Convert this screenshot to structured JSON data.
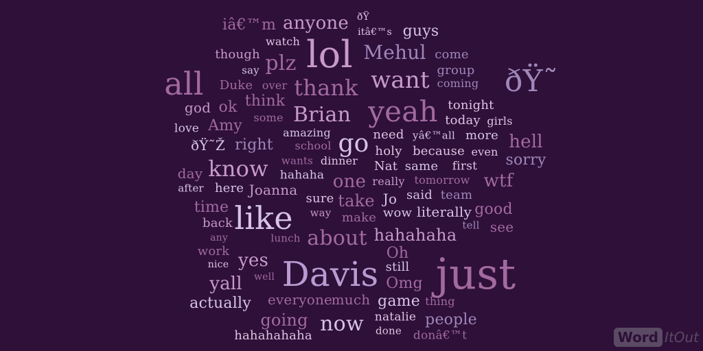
{
  "background": "#2e1039",
  "palette": {
    "a": "#c79ac9",
    "b": "#d7c3e8",
    "c": "#a26aa0",
    "d": "#9f87b9",
    "e": "#e0c2e2",
    "f": "#b99bd1"
  },
  "logo": {
    "box_text": "Word",
    "tail_text": "ItOut"
  },
  "words": [
    {
      "text": "iâ€™m",
      "c": "c",
      "s": 22
    },
    {
      "text": "anyone",
      "c": "a",
      "s": 26
    },
    {
      "text": "ðŸ",
      "c": "e",
      "s": 14
    },
    {
      "text": "itâ€™s",
      "c": "e",
      "s": 14
    },
    {
      "text": "guys",
      "c": "b",
      "s": 22
    },
    {
      "text": "watch",
      "c": "e",
      "s": 16
    },
    {
      "text": "lol",
      "c": "a",
      "s": 54
    },
    {
      "text": "Mehul",
      "c": "d",
      "s": 28
    },
    {
      "text": "come",
      "c": "d",
      "s": 18
    },
    {
      "text": "though",
      "c": "a",
      "s": 18
    },
    {
      "text": "plz",
      "c": "c",
      "s": 30
    },
    {
      "text": "say",
      "c": "b",
      "s": 15
    },
    {
      "text": "group",
      "c": "d",
      "s": 18
    },
    {
      "text": "want",
      "c": "a",
      "s": 34
    },
    {
      "text": "ðŸ˜",
      "c": "d",
      "s": 44
    },
    {
      "text": "coming",
      "c": "d",
      "s": 16
    },
    {
      "text": "all",
      "c": "c",
      "s": 46
    },
    {
      "text": "Duke",
      "c": "c",
      "s": 18
    },
    {
      "text": "over",
      "c": "c",
      "s": 16
    },
    {
      "text": "thank",
      "c": "c",
      "s": 32
    },
    {
      "text": "think",
      "c": "c",
      "s": 22
    },
    {
      "text": "god",
      "c": "a",
      "s": 20
    },
    {
      "text": "ok",
      "c": "c",
      "s": 22
    },
    {
      "text": "tonight",
      "c": "e",
      "s": 18
    },
    {
      "text": "yeah",
      "c": "c",
      "s": 42
    },
    {
      "text": "Brian",
      "c": "a",
      "s": 30
    },
    {
      "text": "today",
      "c": "e",
      "s": 18
    },
    {
      "text": "girls",
      "c": "e",
      "s": 16
    },
    {
      "text": "Amy",
      "c": "c",
      "s": 22
    },
    {
      "text": "some",
      "c": "c",
      "s": 16
    },
    {
      "text": "love",
      "c": "b",
      "s": 17
    },
    {
      "text": "amazing",
      "c": "b",
      "s": 16
    },
    {
      "text": "need",
      "c": "e",
      "s": 18
    },
    {
      "text": "yâ€™all",
      "c": "b",
      "s": 15
    },
    {
      "text": "more",
      "c": "b",
      "s": 18
    },
    {
      "text": "hell",
      "c": "c",
      "s": 26
    },
    {
      "text": "ðŸ˜Ž",
      "c": "b",
      "s": 20
    },
    {
      "text": "right",
      "c": "d",
      "s": 22
    },
    {
      "text": "school",
      "c": "c",
      "s": 16
    },
    {
      "text": "go",
      "c": "b",
      "s": 36
    },
    {
      "text": "holy",
      "c": "e",
      "s": 18
    },
    {
      "text": "because",
      "c": "e",
      "s": 18
    },
    {
      "text": "even",
      "c": "e",
      "s": 16
    },
    {
      "text": "wants",
      "c": "c",
      "s": 15
    },
    {
      "text": "dinner",
      "c": "e",
      "s": 16
    },
    {
      "text": "sorry",
      "c": "d",
      "s": 22
    },
    {
      "text": "day",
      "c": "c",
      "s": 20
    },
    {
      "text": "know",
      "c": "a",
      "s": 32
    },
    {
      "text": "Nat",
      "c": "e",
      "s": 18
    },
    {
      "text": "same",
      "c": "b",
      "s": 18
    },
    {
      "text": "first",
      "c": "e",
      "s": 17
    },
    {
      "text": "hahaha",
      "c": "b",
      "s": 17
    },
    {
      "text": "one",
      "c": "c",
      "s": 26
    },
    {
      "text": "really",
      "c": "a",
      "s": 16
    },
    {
      "text": "tomorrow",
      "c": "c",
      "s": 16
    },
    {
      "text": "wtf",
      "c": "c",
      "s": 26
    },
    {
      "text": "after",
      "c": "b",
      "s": 15
    },
    {
      "text": "here",
      "c": "b",
      "s": 18
    },
    {
      "text": "Joanna",
      "c": "a",
      "s": 20
    },
    {
      "text": "sure",
      "c": "e",
      "s": 18
    },
    {
      "text": "take",
      "c": "c",
      "s": 24
    },
    {
      "text": "Jo",
      "c": "b",
      "s": 20
    },
    {
      "text": "said",
      "c": "b",
      "s": 18
    },
    {
      "text": "team",
      "c": "d",
      "s": 18
    },
    {
      "text": "time",
      "c": "c",
      "s": 22
    },
    {
      "text": "good",
      "c": "c",
      "s": 22
    },
    {
      "text": "way",
      "c": "a",
      "s": 15
    },
    {
      "text": "literally",
      "c": "b",
      "s": 20
    },
    {
      "text": "like",
      "c": "b",
      "s": 46
    },
    {
      "text": "back",
      "c": "a",
      "s": 18
    },
    {
      "text": "make",
      "c": "c",
      "s": 18
    },
    {
      "text": "wow",
      "c": "b",
      "s": 18
    },
    {
      "text": "tell",
      "c": "d",
      "s": 15
    },
    {
      "text": "see",
      "c": "c",
      "s": 20
    },
    {
      "text": "any",
      "c": "c",
      "s": 14
    },
    {
      "text": "lunch",
      "c": "c",
      "s": 15
    },
    {
      "text": "about",
      "c": "c",
      "s": 30
    },
    {
      "text": "hahahaha",
      "c": "a",
      "s": 24
    },
    {
      "text": "work",
      "c": "c",
      "s": 18
    },
    {
      "text": "Oh",
      "c": "c",
      "s": 22
    },
    {
      "text": "yes",
      "c": "a",
      "s": 26
    },
    {
      "text": "nice",
      "c": "e",
      "s": 14
    },
    {
      "text": "still",
      "c": "b",
      "s": 18
    },
    {
      "text": "just",
      "c": "c",
      "s": 62
    },
    {
      "text": "Davis",
      "c": "f",
      "s": 50
    },
    {
      "text": "yall",
      "c": "a",
      "s": 26
    },
    {
      "text": "well",
      "c": "c",
      "s": 14
    },
    {
      "text": "Omg",
      "c": "c",
      "s": 22
    },
    {
      "text": "actually",
      "c": "b",
      "s": 22
    },
    {
      "text": "everyone",
      "c": "c",
      "s": 20
    },
    {
      "text": "much",
      "c": "c",
      "s": 20
    },
    {
      "text": "game",
      "c": "b",
      "s": 22
    },
    {
      "text": "thing",
      "c": "c",
      "s": 16
    },
    {
      "text": "going",
      "c": "c",
      "s": 24
    },
    {
      "text": "now",
      "c": "b",
      "s": 30
    },
    {
      "text": "natalie",
      "c": "e",
      "s": 17
    },
    {
      "text": "people",
      "c": "d",
      "s": 22
    },
    {
      "text": "hahahahaha",
      "c": "e",
      "s": 18
    },
    {
      "text": "done",
      "c": "e",
      "s": 15
    },
    {
      "text": "donâ€™t",
      "c": "c",
      "s": 17
    }
  ]
}
